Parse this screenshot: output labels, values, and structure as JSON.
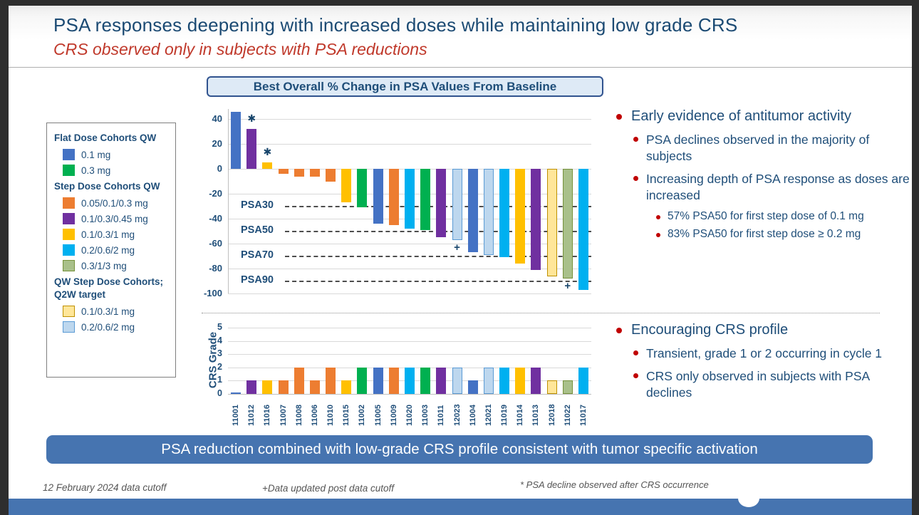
{
  "slide": {
    "title": "PSA responses deepening with increased doses while maintaining low grade CRS",
    "subtitle": "CRS observed only in subjects with PSA reductions"
  },
  "cohort_colors": {
    "0.1 mg": {
      "fill": "#4472C4"
    },
    "0.3 mg": {
      "fill": "#00B050"
    },
    "0.05/0.1/0.3 mg": {
      "fill": "#ED7D31"
    },
    "0.1/0.3/0.45 mg": {
      "fill": "#7030A0"
    },
    "0.1/0.3/1 mg": {
      "fill": "#FFC000"
    },
    "0.2/0.6/2 mg": {
      "fill": "#00B0F0"
    },
    "0.3/1/3 mg": {
      "fill": "#A9C08A",
      "border": "#76923C"
    },
    "Q2W 0.1/0.3/1 mg": {
      "fill": "#FFE699",
      "border": "#BF9000"
    },
    "Q2W 0.2/0.6/2 mg": {
      "fill": "#BDD7EE",
      "border": "#5B9BD5"
    }
  },
  "legend": {
    "groups": [
      {
        "heading": "Flat Dose Cohorts QW",
        "items": [
          {
            "label": "0.1 mg",
            "cohort": "0.1 mg"
          },
          {
            "label": "0.3 mg",
            "cohort": "0.3 mg"
          }
        ]
      },
      {
        "heading": "Step Dose Cohorts QW",
        "items": [
          {
            "label": "0.05/0.1/0.3 mg",
            "cohort": "0.05/0.1/0.3 mg"
          },
          {
            "label": "0.1/0.3/0.45 mg",
            "cohort": "0.1/0.3/0.45 mg"
          },
          {
            "label": "0.1/0.3/1 mg",
            "cohort": "0.1/0.3/1 mg"
          },
          {
            "label": "0.2/0.6/2 mg",
            "cohort": "0.2/0.6/2 mg"
          },
          {
            "label": "0.3/1/3 mg",
            "cohort": "0.3/1/3 mg"
          }
        ]
      },
      {
        "heading": "QW Step Dose Cohorts; Q2W target",
        "items": [
          {
            "label": "0.1/0.3/1 mg",
            "cohort": "Q2W 0.1/0.3/1 mg"
          },
          {
            "label": "0.2/0.6/2 mg",
            "cohort": "Q2W 0.2/0.6/2 mg"
          }
        ]
      }
    ]
  },
  "subject_cohorts": {
    "11001": "0.1 mg",
    "11012": "0.1/0.3/0.45 mg",
    "11016": "0.1/0.3/1 mg",
    "11007": "0.05/0.1/0.3 mg",
    "11008": "0.05/0.1/0.3 mg",
    "11006": "0.05/0.1/0.3 mg",
    "11010": "0.05/0.1/0.3 mg",
    "11015": "0.1/0.3/1 mg",
    "11002": "0.3 mg",
    "11005": "0.1 mg",
    "11009": "0.05/0.1/0.3 mg",
    "11020": "0.2/0.6/2 mg",
    "11003": "0.3 mg",
    "11011": "0.1/0.3/0.45 mg",
    "12023": "Q2W 0.2/0.6/2 mg",
    "11004": "0.1 mg",
    "12021": "Q2W 0.2/0.6/2 mg",
    "11019": "0.2/0.6/2 mg",
    "11014": "0.1/0.3/1 mg",
    "11013": "0.1/0.3/0.45 mg",
    "12018": "Q2W 0.1/0.3/1 mg",
    "11022": "0.3/1/3 mg",
    "11017": "0.2/0.6/2 mg"
  },
  "chart_data": [
    {
      "type": "bar",
      "title": "Best Overall % Change in PSA Values From Baseline",
      "ylim": [
        -100,
        50
      ],
      "yticks": [
        40,
        20,
        0,
        -20,
        -40,
        -60,
        -80,
        -100
      ],
      "grid": true,
      "categories": [
        "11001",
        "11012",
        "11016",
        "11007",
        "11008",
        "11006",
        "11010",
        "11015",
        "11002",
        "11005",
        "11009",
        "11020",
        "11003",
        "11011",
        "12023",
        "11004",
        "12021",
        "11019",
        "11014",
        "11013",
        "12018",
        "11022",
        "11017"
      ],
      "values": [
        46,
        32,
        5,
        -4,
        -6,
        -6,
        -10,
        -27,
        -31,
        -44,
        -45,
        -48,
        -49,
        -55,
        -57,
        -67,
        -69,
        -71,
        -76,
        -81,
        -86,
        -88,
        -97
      ],
      "threshold_lines": [
        {
          "label": "PSA30",
          "value": -30
        },
        {
          "label": "PSA50",
          "value": -50
        },
        {
          "label": "PSA70",
          "value": -70
        },
        {
          "label": "PSA90",
          "value": -90
        }
      ],
      "annotations": [
        {
          "category": "11012",
          "symbol": "*"
        },
        {
          "category": "11016",
          "symbol": "*"
        },
        {
          "category": "12023",
          "symbol": "+"
        },
        {
          "category": "11022",
          "symbol": "+"
        }
      ]
    },
    {
      "type": "bar",
      "ylabel": "CRS Grade",
      "ylim": [
        0,
        5
      ],
      "yticks": [
        5,
        4,
        3,
        2,
        1,
        0
      ],
      "grid": true,
      "categories": [
        "11001",
        "11012",
        "11016",
        "11007",
        "11008",
        "11006",
        "11010",
        "11015",
        "11002",
        "11005",
        "11009",
        "11020",
        "11003",
        "11011",
        "12023",
        "11004",
        "12021",
        "11019",
        "11014",
        "11013",
        "12018",
        "11022",
        "11017"
      ],
      "values": [
        0.1,
        1,
        1,
        1,
        2,
        1,
        2,
        1,
        2,
        2,
        2,
        2,
        2,
        2,
        2,
        1,
        2,
        2,
        2,
        2,
        1,
        1,
        2
      ]
    }
  ],
  "insights": {
    "antitumor": {
      "heading": "Early evidence of antitumor activity",
      "points": [
        "PSA declines observed in the majority of subjects",
        "Increasing depth of PSA response as doses are increased"
      ],
      "subpoints": [
        "57% PSA50 for first step dose of 0.1 mg",
        "83% PSA50 for first step dose ≥ 0.2 mg"
      ]
    },
    "crs": {
      "heading": "Encouraging CRS profile",
      "points": [
        "Transient, grade 1 or 2 occurring in cycle 1",
        "CRS only observed in subjects with PSA declines"
      ]
    }
  },
  "banner": {
    "text": "PSA reduction combined with low-grade CRS profile consistent with tumor specific activation"
  },
  "footnotes": {
    "cutoff": "12 February 2024 data cutoff",
    "plus": "+Data updated post data cutoff",
    "asterisk": "* PSA decline observed after CRS occurrence"
  },
  "colors": {
    "heading_text": "#1B4A73",
    "subtitle_text": "#C0392B",
    "body_text": "#1F4E79",
    "bullet_dot": "#C00000",
    "banner_bg": "#4674B0",
    "gridline": "#D9D9D9",
    "threshold_dash": "#4D4D4D"
  }
}
